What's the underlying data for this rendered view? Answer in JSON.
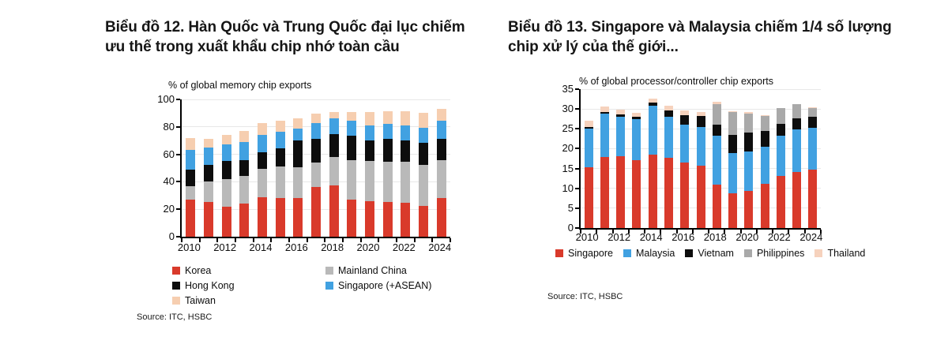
{
  "chart_data": [
    {
      "type": "bar",
      "stacked": true,
      "heading": "Biểu đồ 12. Hàn Quốc và Trung Quốc đại lục chiếm ưu thế trong xuất khẩu chip nhớ toàn cầu",
      "title": "% of global memory chip exports",
      "source": "Source: ITC, HSBC",
      "categories": [
        "2010",
        "2011",
        "2012",
        "2013",
        "2014",
        "2015",
        "2016",
        "2017",
        "2018",
        "2019",
        "2020",
        "2021",
        "2022",
        "2023",
        "2024"
      ],
      "xtick_indices": [
        0,
        2,
        4,
        6,
        8,
        10,
        12,
        14
      ],
      "ylim": [
        0,
        100
      ],
      "ytick_step": 20,
      "grid": true,
      "legend": {
        "layout": "columns",
        "position": "bottom",
        "groups": [
          [
            "Korea",
            "Hong Kong",
            "Taiwan"
          ],
          [
            "Mainland China",
            "Singapore (+ASEAN)"
          ]
        ]
      },
      "series": [
        {
          "name": "Korea",
          "color": "#d93a2b",
          "values": [
            27,
            25.5,
            22,
            24,
            29,
            28,
            28,
            36,
            37.5,
            27,
            26,
            25.5,
            25,
            22.5,
            28
          ]
        },
        {
          "name": "Mainland China",
          "color": "#b9b9b9",
          "values": [
            10,
            14.5,
            20,
            20,
            20.5,
            23,
            22.5,
            18,
            20.5,
            28.5,
            29,
            29,
            29.5,
            30,
            27.5
          ]
        },
        {
          "name": "Hong Kong",
          "color": "#0d0d0d",
          "values": [
            12,
            12.5,
            13,
            12,
            12,
            13.5,
            19.5,
            17.5,
            16.5,
            18,
            15,
            16.5,
            15.5,
            16,
            15.5
          ]
        },
        {
          "name": "Singapore (+ASEAN)",
          "color": "#41a1e1",
          "values": [
            14.5,
            12.5,
            12,
            13,
            12.5,
            12,
            9,
            11.5,
            11.5,
            11,
            11,
            11,
            11,
            11,
            13.5
          ]
        },
        {
          "name": "Taiwan",
          "color": "#f6ceb0",
          "values": [
            8.5,
            6.5,
            7,
            8,
            8.5,
            8,
            7,
            6.5,
            5,
            6.5,
            10,
            9.5,
            10.5,
            11,
            8.5
          ]
        }
      ]
    },
    {
      "type": "bar",
      "stacked": true,
      "heading": "Biểu đồ 13. Singapore và Malaysia chiếm 1/4 số lượng chip xử lý của thế giới...",
      "title": "% of global processor/controller chip exports",
      "source": "Source: ITC, HSBC",
      "categories": [
        "2010",
        "2011",
        "2012",
        "2013",
        "2014",
        "2015",
        "2016",
        "2017",
        "2018",
        "2019",
        "2020",
        "2021",
        "2022",
        "2023",
        "2024"
      ],
      "xtick_indices": [
        0,
        2,
        4,
        6,
        8,
        10,
        12,
        14
      ],
      "ylim": [
        0,
        35
      ],
      "ytick_step": 5,
      "grid": true,
      "legend": {
        "layout": "row",
        "position": "bottom",
        "groups": [
          [
            "Singapore",
            "Malaysia",
            "Vietnam",
            "Philippines",
            "Thailand"
          ]
        ]
      },
      "series": [
        {
          "name": "Singapore",
          "color": "#d93a2b",
          "values": [
            15.4,
            18,
            18.1,
            17.1,
            18.4,
            17.7,
            16.6,
            15.7,
            11,
            8.8,
            9.4,
            11.2,
            13.2,
            14.1,
            14.8
          ]
        },
        {
          "name": "Malaysia",
          "color": "#41a1e1",
          "values": [
            9.7,
            10.9,
            9.9,
            10.3,
            12.4,
            10.3,
            9.4,
            9.7,
            12.2,
            10.1,
            9.8,
            9.3,
            10.1,
            10.8,
            10.4
          ]
        },
        {
          "name": "Vietnam",
          "color": "#0d0d0d",
          "values": [
            0.3,
            0.4,
            0.7,
            0.7,
            0.8,
            1.7,
            2.5,
            2.8,
            2.8,
            4.6,
            4.9,
            3.9,
            2.9,
            2.7,
            2.8
          ]
        },
        {
          "name": "Philippines",
          "color": "#a9a9a9",
          "values": [
            0,
            0,
            0,
            0,
            0,
            0,
            0,
            0,
            5.3,
            5.7,
            4.8,
            4,
            4,
            3.6,
            2.2
          ]
        },
        {
          "name": "Thailand",
          "color": "#f6d2bd",
          "values": [
            1.6,
            1.4,
            1.2,
            1,
            1,
            1.2,
            1.2,
            1.1,
            0.6,
            0.3,
            0.4,
            0.1,
            0,
            0,
            0.3
          ]
        }
      ]
    }
  ]
}
